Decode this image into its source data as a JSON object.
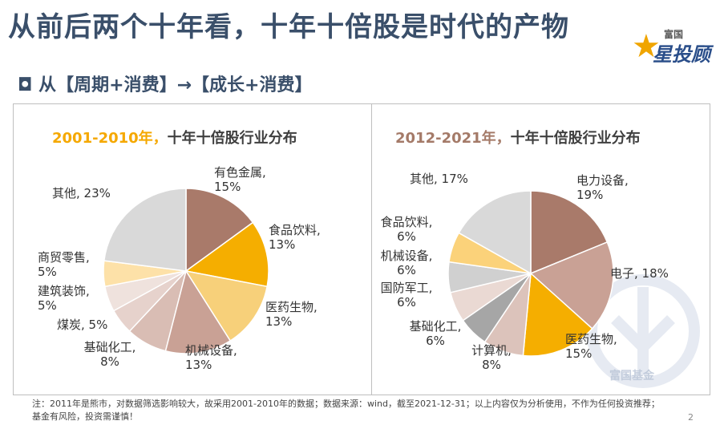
{
  "header": {
    "title": "从前后两个十年看，十年十倍股是时代的产物",
    "subtitle": "◘ 从【周期+消费】→【成长+消费】"
  },
  "logo": {
    "top_text": "富国",
    "main_text": "星投顾"
  },
  "watermark": {
    "text": "富国基金"
  },
  "colors": {
    "heading": "#3a4f6a",
    "accent_gold": "#f5a800",
    "accent_brown": "#a47a68"
  },
  "chart_data": [
    {
      "type": "pie",
      "title_year": "2001-2010年，",
      "title_rest": "十年十倍股行业分布",
      "start_angle_deg": 0,
      "slices": [
        {
          "name": "有色金属",
          "value": 15,
          "label": "15%",
          "color": "#a97a6a"
        },
        {
          "name": "食品饮料",
          "value": 13,
          "label": "13%",
          "color": "#f5ae00"
        },
        {
          "name": "医药生物",
          "value": 13,
          "label": "13%",
          "color": "#f7d07a"
        },
        {
          "name": "机械设备",
          "value": 13,
          "label": "13%",
          "color": "#c9a195"
        },
        {
          "name": "基础化工",
          "value": 8,
          "label": "8%",
          "color": "#d9bdb4"
        },
        {
          "name": "煤炭",
          "value": 5,
          "label": "5%",
          "color": "#e6d2cc"
        },
        {
          "name": "建筑装饰",
          "value": 5,
          "label": "5%",
          "color": "#efe2dd"
        },
        {
          "name": "商贸零售",
          "value": 5,
          "label": "5%",
          "color": "#fde1a8"
        },
        {
          "name": "其他",
          "value": 23,
          "label": "23%",
          "color": "#d9d9d9"
        }
      ]
    },
    {
      "type": "pie",
      "title_year": "2012-2021年，",
      "title_rest": "十年十倍股行业分布",
      "start_angle_deg": 0,
      "slices": [
        {
          "name": "电力设备",
          "value": 19,
          "label": "19%",
          "color": "#a97a6a"
        },
        {
          "name": "电子",
          "value": 18,
          "label": "18%",
          "color": "#c9a195"
        },
        {
          "name": "医药生物",
          "value": 15,
          "label": "15%",
          "color": "#f5ae00"
        },
        {
          "name": "计算机",
          "value": 8,
          "label": "8%",
          "color": "#dcc3bb"
        },
        {
          "name": "基础化工",
          "value": 6,
          "label": "6%",
          "color": "#a6a6a6"
        },
        {
          "name": "国防军工",
          "value": 6,
          "label": "6%",
          "color": "#ead9d3"
        },
        {
          "name": "机械设备",
          "value": 6,
          "label": "6%",
          "color": "#d0d0d0"
        },
        {
          "name": "食品饮料",
          "value": 6,
          "label": "6%",
          "color": "#fbd27a"
        },
        {
          "name": "其他",
          "value": 17,
          "label": "17%",
          "color": "#d9d9d9"
        }
      ]
    }
  ],
  "footer": {
    "line1": "注：2011年是熊市，对数据筛选影响较大，故采用2001-2010年的数据；数据来源：wind，截至2021-12-31；以上内容仅为分析使用，不作为任何投资推荐；",
    "line2": "基金有风险，投资需谨慎！",
    "page_number": "2"
  }
}
